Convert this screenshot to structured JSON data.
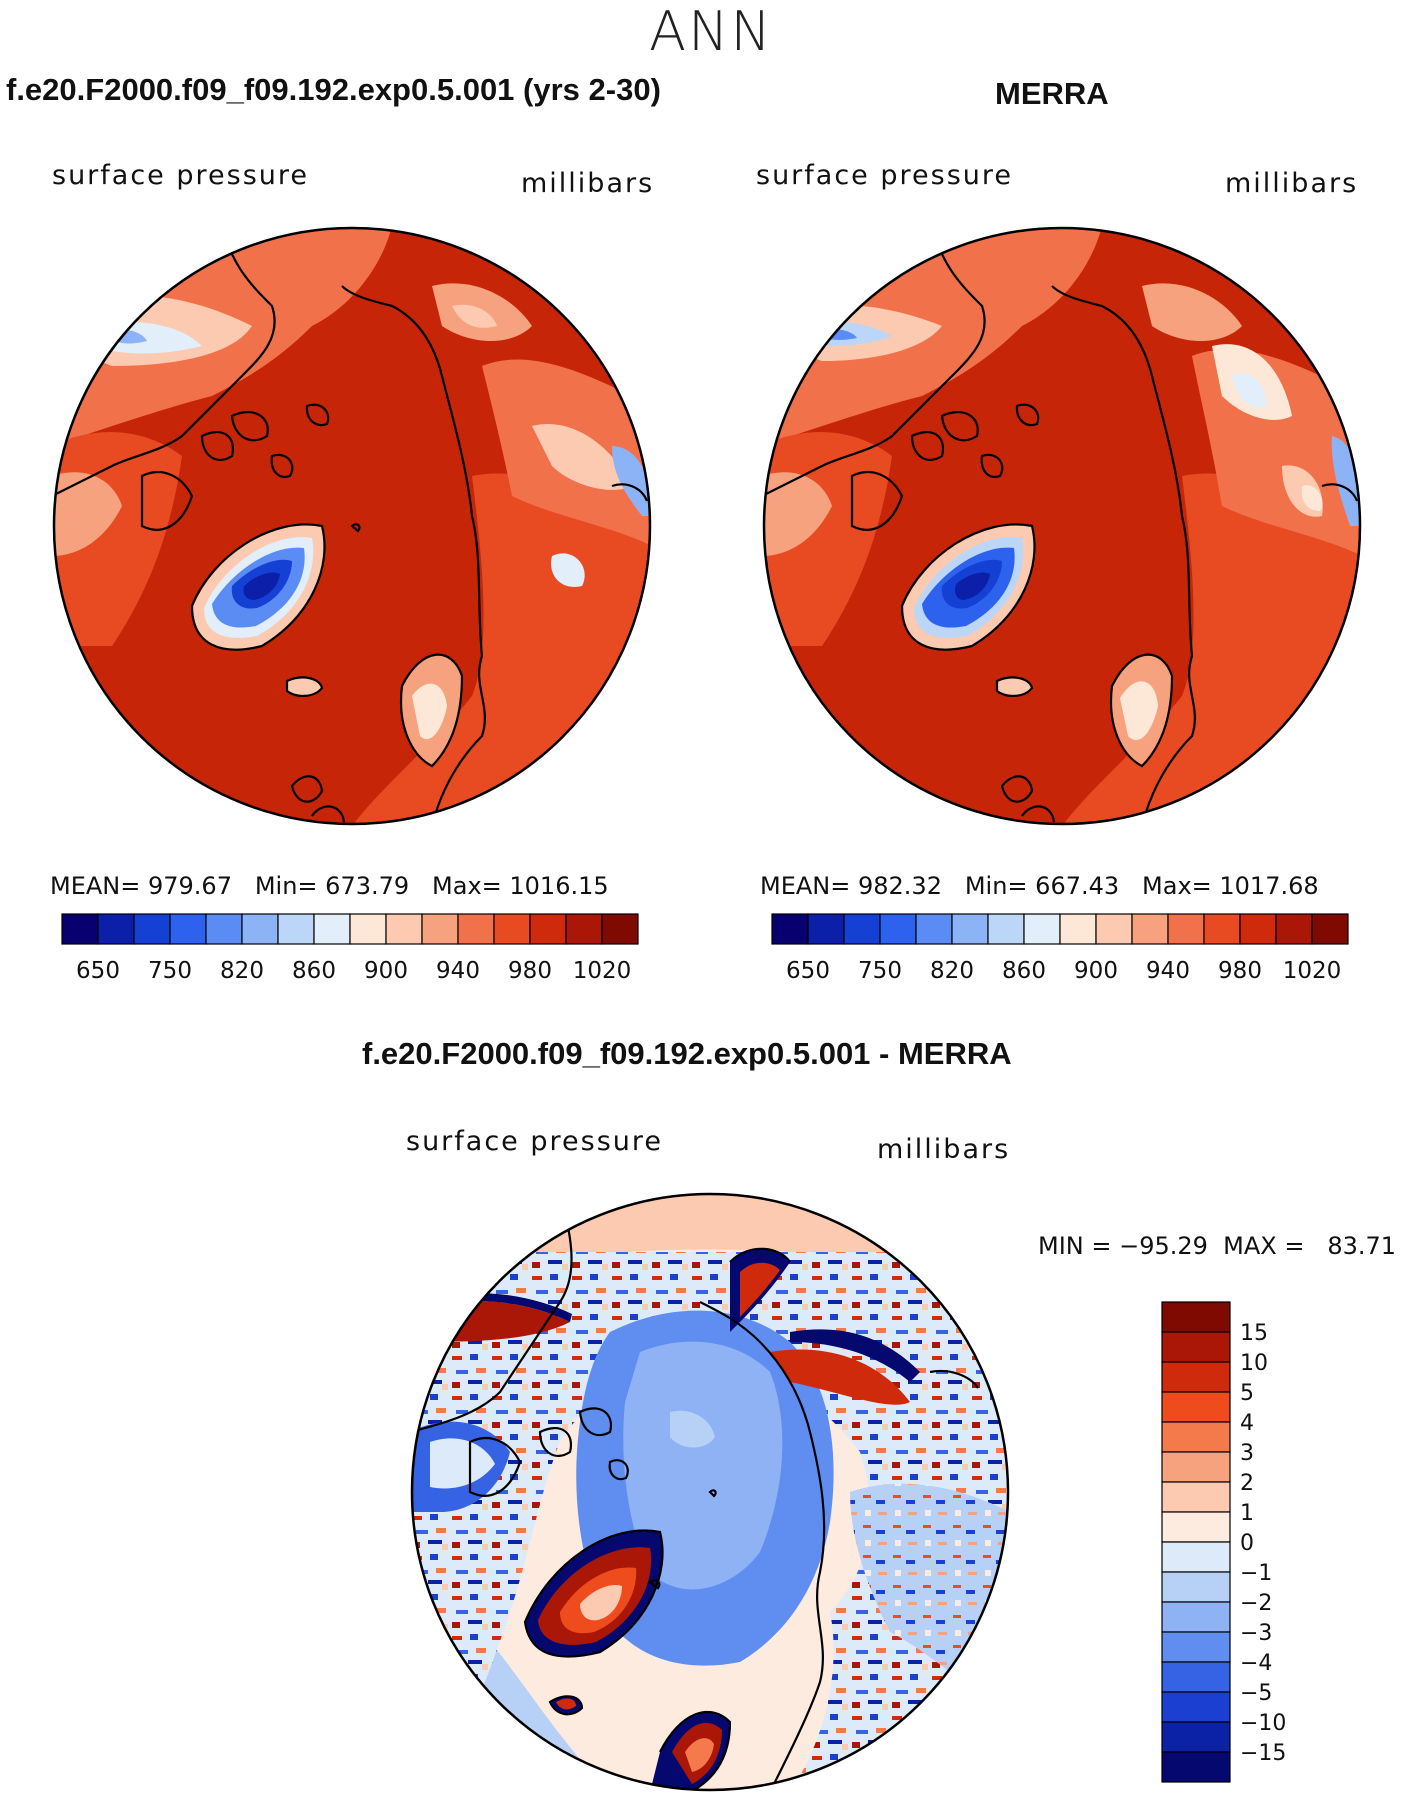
{
  "season": "ANN",
  "panels": [
    {
      "title": "f.e20.F2000.f09_f09.192.exp0.5.001 (yrs 2-30)",
      "variable": "surface pressure",
      "units": "millibars",
      "stats": "MEAN= 979.67   Min= 673.79   Max= 1016.15",
      "colorbar_labels": [
        "650",
        "750",
        "820",
        "860",
        "900",
        "940",
        "980",
        "1020"
      ]
    },
    {
      "title": "MERRA",
      "variable": "surface pressure",
      "units": "millibars",
      "stats": "MEAN= 982.32   Min= 667.43   Max= 1017.68",
      "colorbar_labels": [
        "650",
        "750",
        "820",
        "860",
        "900",
        "940",
        "980",
        "1020"
      ]
    }
  ],
  "diff": {
    "title": "f.e20.F2000.f09_f09.192.exp0.5.001 - MERRA",
    "variable": "surface pressure",
    "units": "millibars",
    "minmax": "MIN = −95.29  MAX =   83.71",
    "colorbar_labels": [
      "15",
      "10",
      "5",
      "4",
      "3",
      "2",
      "1",
      "0",
      "−1",
      "−2",
      "−3",
      "−4",
      "−5",
      "−10",
      "−15"
    ]
  },
  "colors": {
    "abs_scale": [
      "#08006e",
      "#0b1fa8",
      "#1540d4",
      "#2c62ee",
      "#5b8cf4",
      "#8db3f7",
      "#bcd6f8",
      "#e2eefa",
      "#fde8d8",
      "#fbcab0",
      "#f7a27e",
      "#f1714b",
      "#e84a22",
      "#cf2a0c",
      "#ab1706",
      "#7e0a02"
    ],
    "diff_scale": [
      "#7e0a02",
      "#ab1706",
      "#cf2a0c",
      "#ee4c1d",
      "#f47a4c",
      "#f7a27e",
      "#fbcab0",
      "#fdebe0",
      "#dceaf9",
      "#b7d0f6",
      "#8eb2f3",
      "#5f8ef0",
      "#3563e4",
      "#1b3fd0",
      "#0c22a6",
      "#05086e"
    ],
    "ocean_abs": "#c72508",
    "ocean_diff": "#4f7eec",
    "coast": "#000000"
  }
}
